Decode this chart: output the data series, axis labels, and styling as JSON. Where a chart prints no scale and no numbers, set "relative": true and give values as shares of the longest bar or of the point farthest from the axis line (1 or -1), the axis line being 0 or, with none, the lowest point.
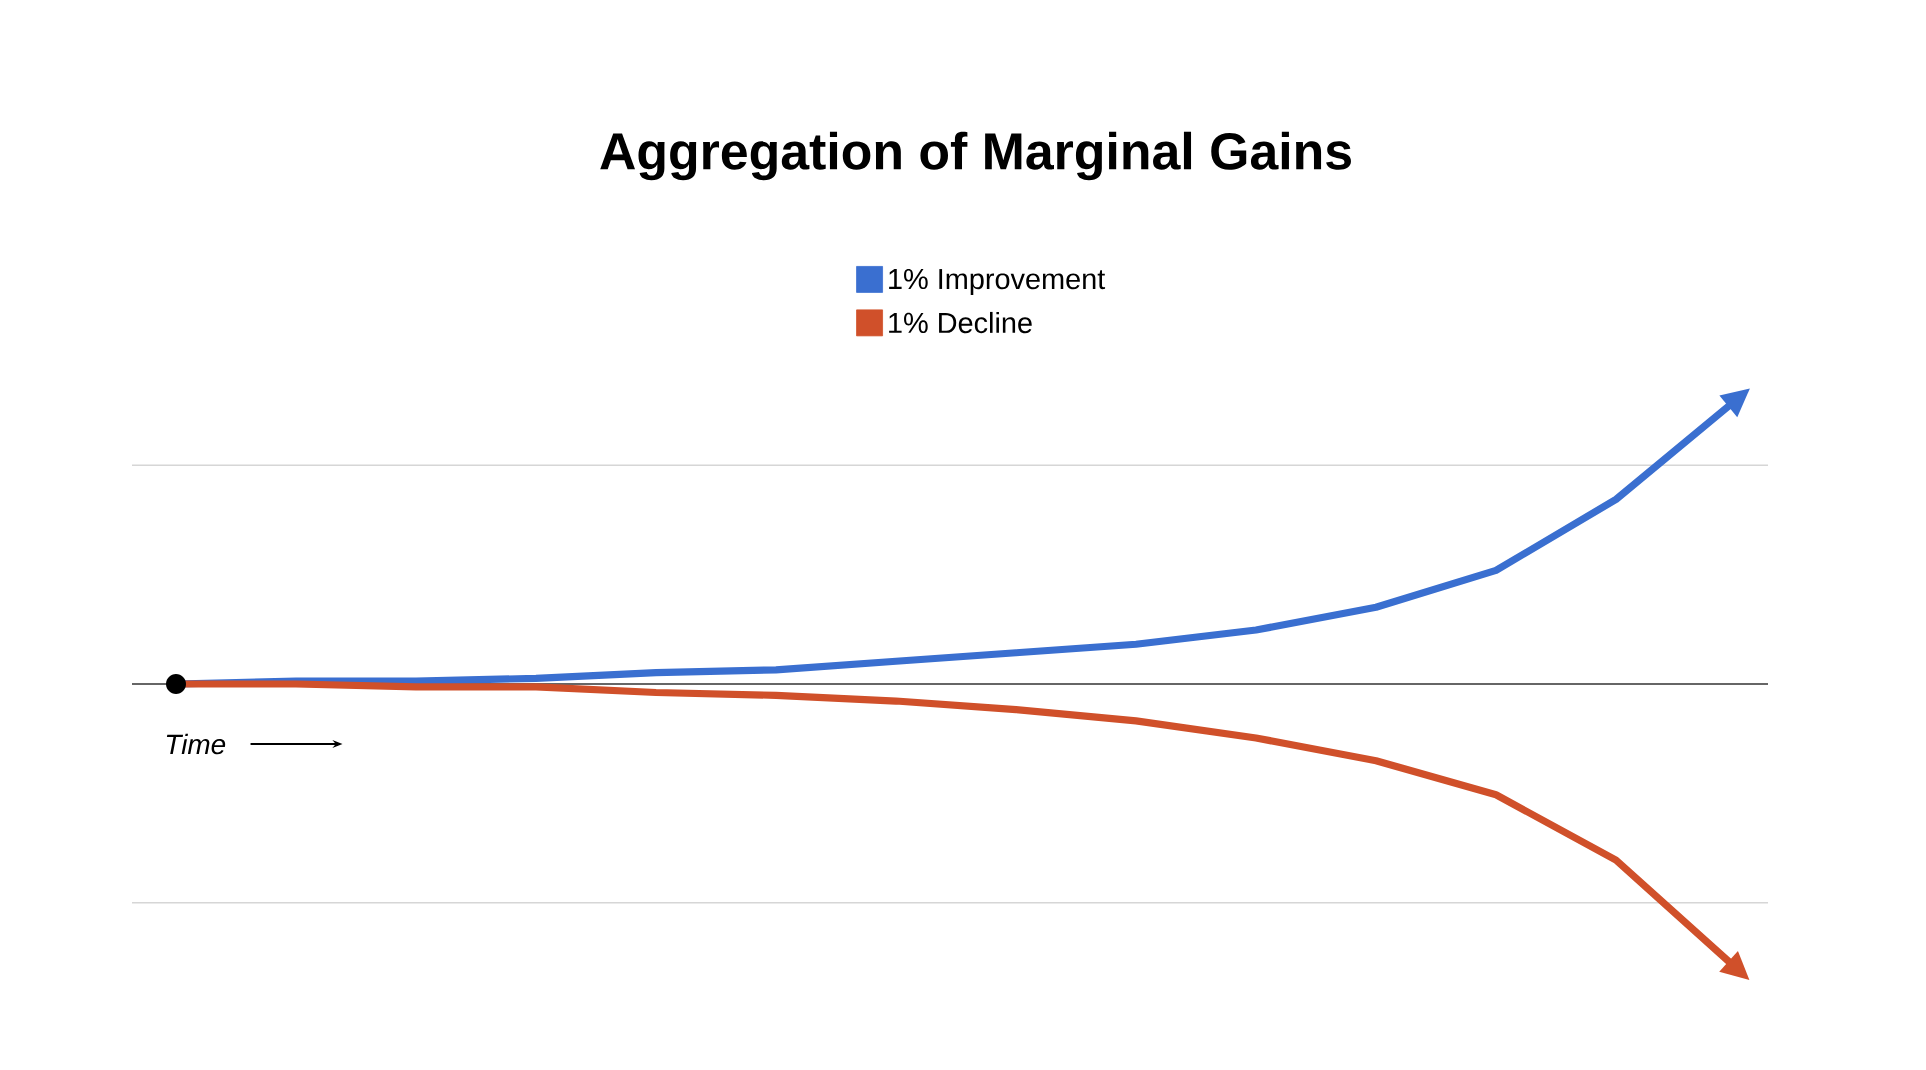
{
  "chart_data": {
    "type": "line",
    "title": "Aggregation of Marginal Gains",
    "xlabel": "Time",
    "relative": true,
    "ref_lines": [
      {
        "axis": "y",
        "value": 0.77,
        "color": "#d6d6d6"
      },
      {
        "axis": "y",
        "value": -0.77,
        "color": "#d6d6d6"
      }
    ],
    "legend": "top",
    "categories": [
      null,
      null,
      null,
      null,
      null,
      null,
      null,
      null,
      null,
      null,
      null,
      null,
      null,
      null
    ],
    "series": [
      {
        "name": "1% Improvement",
        "color": "#3a6fd0",
        "values": [
          0,
          0.01,
          0.01,
          0.02,
          0.04,
          0.05,
          0.08,
          0.11,
          0.14,
          0.19,
          0.27,
          0.4,
          0.65,
          1
        ]
      },
      {
        "name": "1% Decline",
        "color": "#d0502a",
        "values": [
          0,
          0,
          -0.01,
          -0.01,
          -0.03,
          -0.04,
          -0.06,
          -0.09,
          -0.13,
          -0.19,
          -0.27,
          -0.39,
          -0.62,
          -1
        ]
      }
    ]
  }
}
